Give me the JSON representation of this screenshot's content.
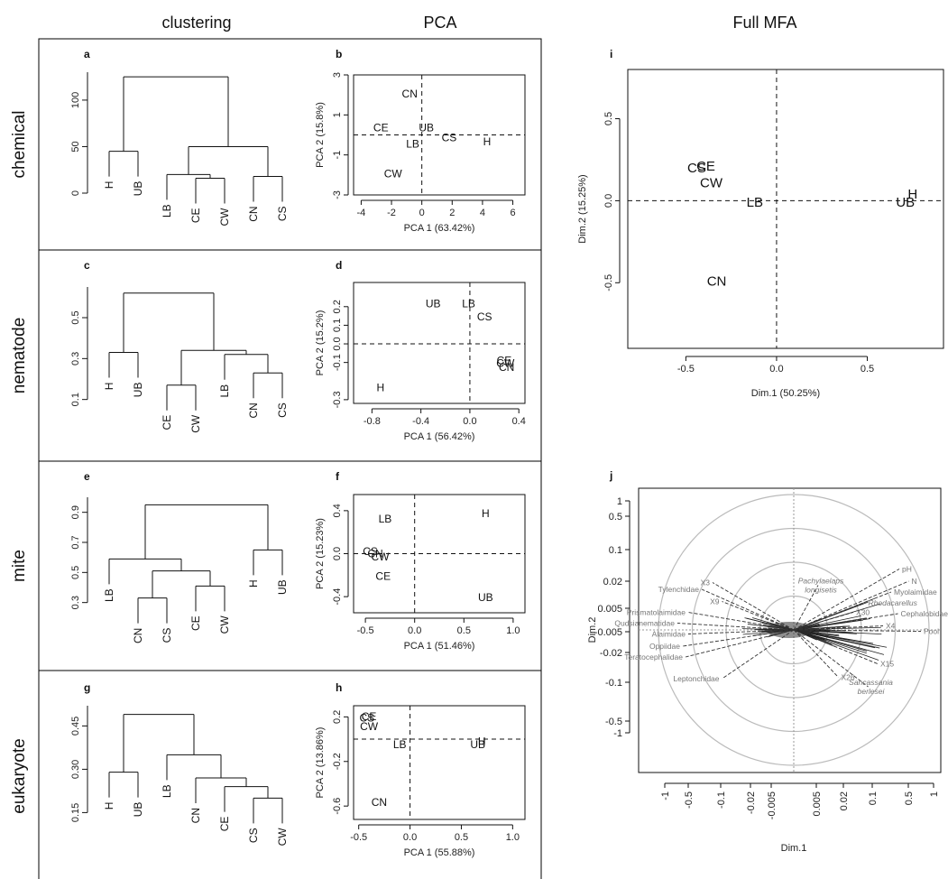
{
  "column_titles": {
    "clustering": "clustering",
    "pca": "PCA",
    "mfa": "Full MFA"
  },
  "row_titles": [
    "chemical",
    "nematode",
    "mite",
    "eukaryote"
  ],
  "chart_data": [
    {
      "type": "dendrogram",
      "panel": "a",
      "yticks": [
        "0",
        "50",
        "100"
      ],
      "yvalues": [
        0,
        50,
        100
      ],
      "ylim": [
        0,
        130
      ],
      "leaves": [
        "H",
        "UB",
        "LB",
        "CE",
        "CW",
        "CN",
        "CS"
      ],
      "merges": [
        {
          "a": "CE",
          "b": "CW",
          "h": 16
        },
        {
          "a": "CN",
          "b": "CS",
          "h": 18
        },
        {
          "a": "LB",
          "b": "CE+CW",
          "h": 20
        },
        {
          "a": "H",
          "b": "UB",
          "h": 45
        },
        {
          "a": "LB+CE+CW",
          "b": "CN+CS",
          "h": 50
        },
        {
          "a": "H+UB",
          "b": "LB+CE+CW+CN+CS",
          "h": 125
        }
      ]
    },
    {
      "type": "scatter",
      "panel": "b",
      "xlabel": "PCA 1 (63.42%)",
      "ylabel": "PCA 2 (15.8%)",
      "xlim": [
        -4.5,
        6.8
      ],
      "ylim": [
        -3,
        3
      ],
      "xticks": [
        -4,
        -2,
        0,
        2,
        4,
        6
      ],
      "yticks": [
        -3,
        -1,
        1,
        3
      ],
      "points": [
        {
          "label": "CN",
          "x": -0.8,
          "y": 2.1
        },
        {
          "label": "CE",
          "x": -2.7,
          "y": 0.4
        },
        {
          "label": "UB",
          "x": 0.3,
          "y": 0.4
        },
        {
          "label": "LB",
          "x": -0.6,
          "y": -0.4
        },
        {
          "label": "CS",
          "x": 1.8,
          "y": -0.1
        },
        {
          "label": "H",
          "x": 4.3,
          "y": -0.3
        },
        {
          "label": "CW",
          "x": -1.9,
          "y": -1.9
        }
      ]
    },
    {
      "type": "dendrogram",
      "panel": "c",
      "yticks": [
        "0.1",
        "0.3",
        "0.5"
      ],
      "yvalues": [
        0.1,
        0.3,
        0.5
      ],
      "ylim": [
        0.05,
        0.65
      ],
      "leaves": [
        "H",
        "UB",
        "CE",
        "CW",
        "LB",
        "CN",
        "CS"
      ],
      "merges": [
        {
          "a": "CE",
          "b": "CW",
          "h": 0.17
        },
        {
          "a": "CN",
          "b": "CS",
          "h": 0.23
        },
        {
          "a": "LB",
          "b": "CN+CS",
          "h": 0.32
        },
        {
          "a": "H",
          "b": "UB",
          "h": 0.33
        },
        {
          "a": "CE+CW",
          "b": "LB+CN+CS",
          "h": 0.34
        },
        {
          "a": "H+UB",
          "b": "CE+CW+LB+CN+CS",
          "h": 0.62
        }
      ]
    },
    {
      "type": "scatter",
      "panel": "d",
      "xlabel": "PCA 1 (56.42%)",
      "ylabel": "PCA 2 (15.2%)",
      "xlim": [
        -0.95,
        0.45
      ],
      "ylim": [
        -0.32,
        0.33
      ],
      "xticks": [
        -0.8,
        -0.4,
        0.0,
        0.4
      ],
      "yticks": [
        -0.3,
        -0.1,
        0.0,
        0.1,
        0.2
      ],
      "xtick_labels": [
        "-0.8",
        "-0.4",
        "0.0",
        "0.4"
      ],
      "ytick_labels": [
        "-0.3",
        "-0.1",
        "0.0",
        "0.1",
        "0.2"
      ],
      "points": [
        {
          "label": "UB",
          "x": -0.3,
          "y": 0.22
        },
        {
          "label": "LB",
          "x": -0.01,
          "y": 0.22
        },
        {
          "label": "CS",
          "x": 0.12,
          "y": 0.15
        },
        {
          "label": "CE",
          "x": 0.28,
          "y": -0.085
        },
        {
          "label": "CW",
          "x": 0.29,
          "y": -0.1
        },
        {
          "label": "CN",
          "x": 0.3,
          "y": -0.12
        },
        {
          "label": "H",
          "x": -0.73,
          "y": -0.23
        }
      ]
    },
    {
      "type": "dendrogram",
      "panel": "e",
      "yticks": [
        "0.3",
        "0.5",
        "0.7",
        "0.9"
      ],
      "yvalues": [
        0.3,
        0.5,
        0.7,
        0.9
      ],
      "ylim": [
        0.25,
        1.0
      ],
      "leaves": [
        "LB",
        "CN",
        "CS",
        "CE",
        "CW",
        "H",
        "UB"
      ],
      "merges": [
        {
          "a": "CN",
          "b": "CS",
          "h": 0.33
        },
        {
          "a": "CE",
          "b": "CW",
          "h": 0.41
        },
        {
          "a": "CN+CS",
          "b": "CE+CW",
          "h": 0.51
        },
        {
          "a": "LB",
          "b": "CN+CS+CE+CW",
          "h": 0.59
        },
        {
          "a": "H",
          "b": "UB",
          "h": 0.65
        },
        {
          "a": "LB+CN+CS+CE+CW",
          "b": "H+UB",
          "h": 0.95
        }
      ]
    },
    {
      "type": "scatter",
      "panel": "f",
      "xlabel": "PCA 1 (51.46%)",
      "ylabel": "PCA 2 (15.23%)",
      "xlim": [
        -0.62,
        1.12
      ],
      "ylim": [
        -0.55,
        0.55
      ],
      "xticks": [
        -0.5,
        0.0,
        0.5,
        1.0
      ],
      "yticks": [
        -0.4,
        0.0,
        0.4
      ],
      "xtick_labels": [
        "-0.5",
        "0.0",
        "0.5",
        "1.0"
      ],
      "ytick_labels": [
        "-0.4",
        "0.0",
        "0.4"
      ],
      "points": [
        {
          "label": "LB",
          "x": -0.3,
          "y": 0.33
        },
        {
          "label": "H",
          "x": 0.72,
          "y": 0.38
        },
        {
          "label": "CS",
          "x": -0.45,
          "y": 0.03
        },
        {
          "label": "CN",
          "x": -0.4,
          "y": 0.01
        },
        {
          "label": "CW",
          "x": -0.35,
          "y": -0.02
        },
        {
          "label": "CE",
          "x": -0.32,
          "y": -0.2
        },
        {
          "label": "UB",
          "x": 0.72,
          "y": -0.4
        }
      ]
    },
    {
      "type": "dendrogram",
      "panel": "g",
      "yticks": [
        "0.15",
        "0.30",
        "0.45"
      ],
      "yvalues": [
        0.15,
        0.3,
        0.45
      ],
      "ylim": [
        0.12,
        0.52
      ],
      "leaves": [
        "H",
        "UB",
        "LB",
        "CN",
        "CE",
        "CS",
        "CW"
      ],
      "merges": [
        {
          "a": "CS",
          "b": "CW",
          "h": 0.2
        },
        {
          "a": "CE",
          "b": "CS+CW",
          "h": 0.24
        },
        {
          "a": "CN",
          "b": "CE+CS+CW",
          "h": 0.27
        },
        {
          "a": "H",
          "b": "UB",
          "h": 0.29
        },
        {
          "a": "LB",
          "b": "CN+CE+CS+CW",
          "h": 0.35
        },
        {
          "a": "H+UB",
          "b": "LB+CN+CE+CS+CW",
          "h": 0.49
        }
      ]
    },
    {
      "type": "scatter",
      "panel": "h",
      "xlabel": "PCA 1 (55.88%)",
      "ylabel": "PCA 2 (13.86%)",
      "xlim": [
        -0.55,
        1.12
      ],
      "ylim": [
        -0.72,
        0.3
      ],
      "xticks": [
        -0.5,
        0.0,
        0.5,
        1.0
      ],
      "yticks": [
        -0.6,
        -0.2,
        0.2
      ],
      "xtick_labels": [
        "-0.5",
        "0.0",
        "0.5",
        "1.0"
      ],
      "ytick_labels": [
        "-0.6",
        "-0.2",
        "0.2"
      ],
      "points": [
        {
          "label": "CE",
          "x": -0.4,
          "y": 0.21
        },
        {
          "label": "CS",
          "x": -0.42,
          "y": 0.2
        },
        {
          "label": "CW",
          "x": -0.4,
          "y": 0.12
        },
        {
          "label": "LB",
          "x": -0.1,
          "y": -0.04
        },
        {
          "label": "H",
          "x": 0.7,
          "y": -0.01
        },
        {
          "label": "UB",
          "x": 0.66,
          "y": -0.04
        },
        {
          "label": "CN",
          "x": -0.3,
          "y": -0.56
        }
      ]
    },
    {
      "type": "scatter",
      "panel": "i",
      "xlabel": "Dim.1 (50.25%)",
      "ylabel": "Dim.2 (15.25%)",
      "xlim": [
        -0.82,
        0.92
      ],
      "ylim": [
        -0.9,
        0.8
      ],
      "xticks": [
        -0.5,
        0.0,
        0.5
      ],
      "yticks": [
        -0.5,
        0.0,
        0.5
      ],
      "xtick_labels": [
        "-0.5",
        "0.0",
        "0.5"
      ],
      "ytick_labels": [
        "-0.5",
        "0.0",
        "0.5"
      ],
      "points": [
        {
          "label": "CS",
          "x": -0.44,
          "y": 0.2
        },
        {
          "label": "CE",
          "x": -0.39,
          "y": 0.21
        },
        {
          "label": "CW",
          "x": -0.36,
          "y": 0.11
        },
        {
          "label": "LB",
          "x": -0.12,
          "y": -0.01
        },
        {
          "label": "H",
          "x": 0.75,
          "y": 0.04
        },
        {
          "label": "UB",
          "x": 0.71,
          "y": -0.01
        },
        {
          "label": "CN",
          "x": -0.33,
          "y": -0.49
        }
      ]
    },
    {
      "type": "correlation-circle",
      "panel": "j",
      "xlabel": "Dim.1",
      "ylabel": "Dim.2",
      "ytick_labels": [
        "1",
        "0.5",
        "0.1",
        "0.02",
        "0.005",
        "-0.005",
        "-0.02",
        "-0.1",
        "-0.5",
        "-1"
      ],
      "xtick_labels": [
        "-1",
        "-0.5",
        "-0.1",
        "-0.02",
        "-0.005",
        "0.005",
        "0.02",
        "0.1",
        "0.5",
        "1"
      ],
      "labeled_vectors": [
        {
          "label": "pH",
          "x": 0.78,
          "y": 0.45,
          "italic": false
        },
        {
          "label": "N",
          "x": 0.85,
          "y": 0.36,
          "italic": false
        },
        {
          "label": "Pachylaelaps longisetis",
          "x": 0.18,
          "y": 0.33,
          "italic": true
        },
        {
          "label": "Myolaimidae",
          "x": 0.72,
          "y": 0.28,
          "italic": false
        },
        {
          "label": "Rhodacarellus",
          "x": 0.53,
          "y": 0.2,
          "italic": true
        },
        {
          "label": "X30",
          "x": 0.44,
          "y": 0.13,
          "italic": false
        },
        {
          "label": "Cephalobidae",
          "x": 0.77,
          "y": 0.12,
          "italic": false
        },
        {
          "label": "X4",
          "x": 0.66,
          "y": 0.03,
          "italic": false
        },
        {
          "label": "Pool",
          "x": 0.94,
          "y": -0.01,
          "italic": false
        },
        {
          "label": "X15",
          "x": 0.62,
          "y": -0.25,
          "italic": false
        },
        {
          "label": "X26",
          "x": 0.33,
          "y": -0.35,
          "italic": false
        },
        {
          "label": "Sancassania berlesei",
          "x": 0.55,
          "y": -0.42,
          "italic": true
        },
        {
          "label": "X3",
          "x": -0.6,
          "y": 0.35,
          "italic": false
        },
        {
          "label": "Tylenchidae",
          "x": -0.68,
          "y": 0.3,
          "italic": false
        },
        {
          "label": "X9",
          "x": -0.53,
          "y": 0.21,
          "italic": false
        },
        {
          "label": "Prismatolaimidae",
          "x": -0.78,
          "y": 0.13,
          "italic": false
        },
        {
          "label": "Qudsianematidae",
          "x": -0.86,
          "y": 0.05,
          "italic": false
        },
        {
          "label": "Alaimidae",
          "x": -0.78,
          "y": -0.03,
          "italic": false
        },
        {
          "label": "Oppiidae",
          "x": -0.82,
          "y": -0.12,
          "italic": false
        },
        {
          "label": "Teratocephalidae",
          "x": -0.8,
          "y": -0.2,
          "italic": false
        },
        {
          "label": "Leptonchidae",
          "x": -0.53,
          "y": -0.36,
          "italic": false
        }
      ]
    }
  ]
}
